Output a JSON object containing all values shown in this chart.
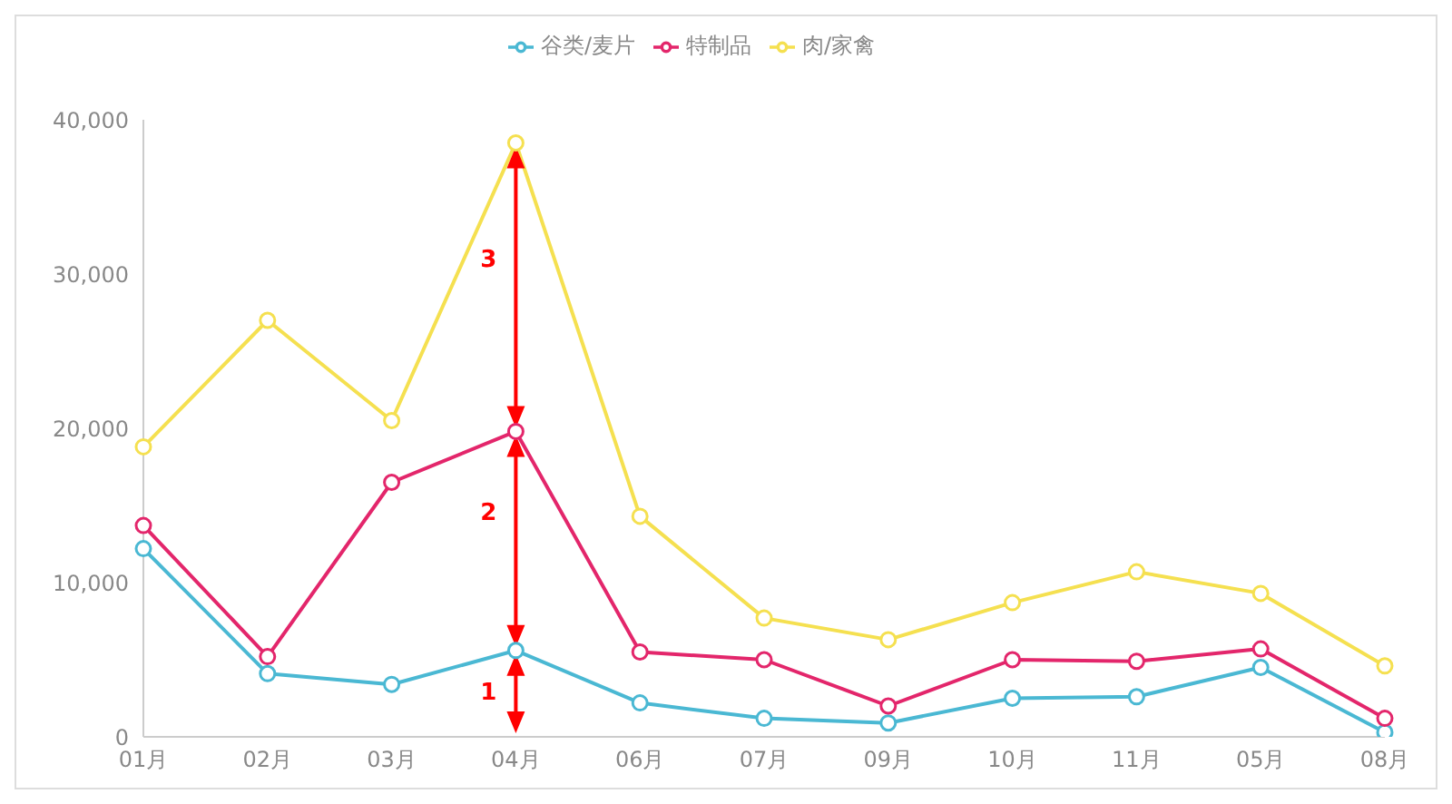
{
  "chart_data": {
    "type": "line",
    "categories": [
      "01月",
      "02月",
      "03月",
      "04月",
      "06月",
      "07月",
      "09月",
      "10月",
      "11月",
      "05月",
      "08月"
    ],
    "series": [
      {
        "name": "谷类/麦片",
        "color": "#4ab8d3",
        "values": [
          12200,
          4100,
          3400,
          5600,
          2200,
          1200,
          900,
          2500,
          2600,
          4500,
          300
        ]
      },
      {
        "name": "特制品",
        "color": "#e3266b",
        "values": [
          13700,
          5200,
          16500,
          19800,
          5500,
          5000,
          2000,
          5000,
          4900,
          5700,
          1200
        ]
      },
      {
        "name": "肉/家禽",
        "color": "#f5e050",
        "values": [
          18800,
          27000,
          20500,
          38500,
          14300,
          7700,
          6300,
          8700,
          10700,
          9300,
          4600
        ]
      }
    ],
    "ylim": [
      0,
      40000
    ],
    "yticks": [
      {
        "value": 0,
        "label": "0"
      },
      {
        "value": 10000,
        "label": "10,000"
      },
      {
        "value": 20000,
        "label": "20,000"
      },
      {
        "value": 30000,
        "label": "30,000"
      },
      {
        "value": 40000,
        "label": "40,000"
      }
    ],
    "annotations": [
      "1",
      "2",
      "3"
    ],
    "grid": false,
    "legend": "top",
    "marker": "circle",
    "line_style": "solid"
  }
}
